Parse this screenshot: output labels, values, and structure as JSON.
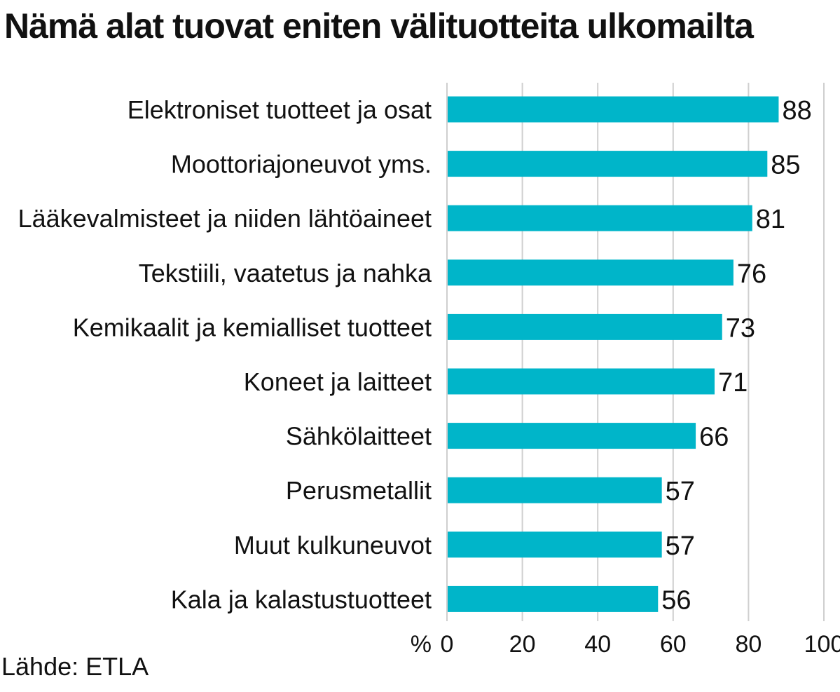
{
  "title": "Nämä alat tuovat eniten välituotteita ulkomailta",
  "source": "Lähde: ETLA",
  "colors": {
    "bar": "#00b5c9",
    "grid": "#cfcfcf",
    "text": "#111111"
  },
  "chart_data": {
    "type": "bar",
    "orientation": "horizontal",
    "categories": [
      "Elektroniset tuotteet ja osat",
      "Moottoriajoneuvot yms.",
      "Lääkevalmisteet ja niiden lähtöaineet",
      "Tekstiili, vaatetus ja nahka",
      "Kemikaalit ja kemialliset tuotteet",
      "Koneet ja laitteet",
      "Sähkölaitteet",
      "Perusmetallit",
      "Muut kulkuneuvot",
      "Kala ja kalastustuotteet"
    ],
    "values": [
      88,
      85,
      81,
      76,
      73,
      71,
      66,
      57,
      57,
      56
    ],
    "xunit": "%",
    "xlim": [
      0,
      100
    ],
    "xticks": [
      0,
      20,
      40,
      60,
      80,
      100
    ],
    "grid": true,
    "data_labels": true
  }
}
